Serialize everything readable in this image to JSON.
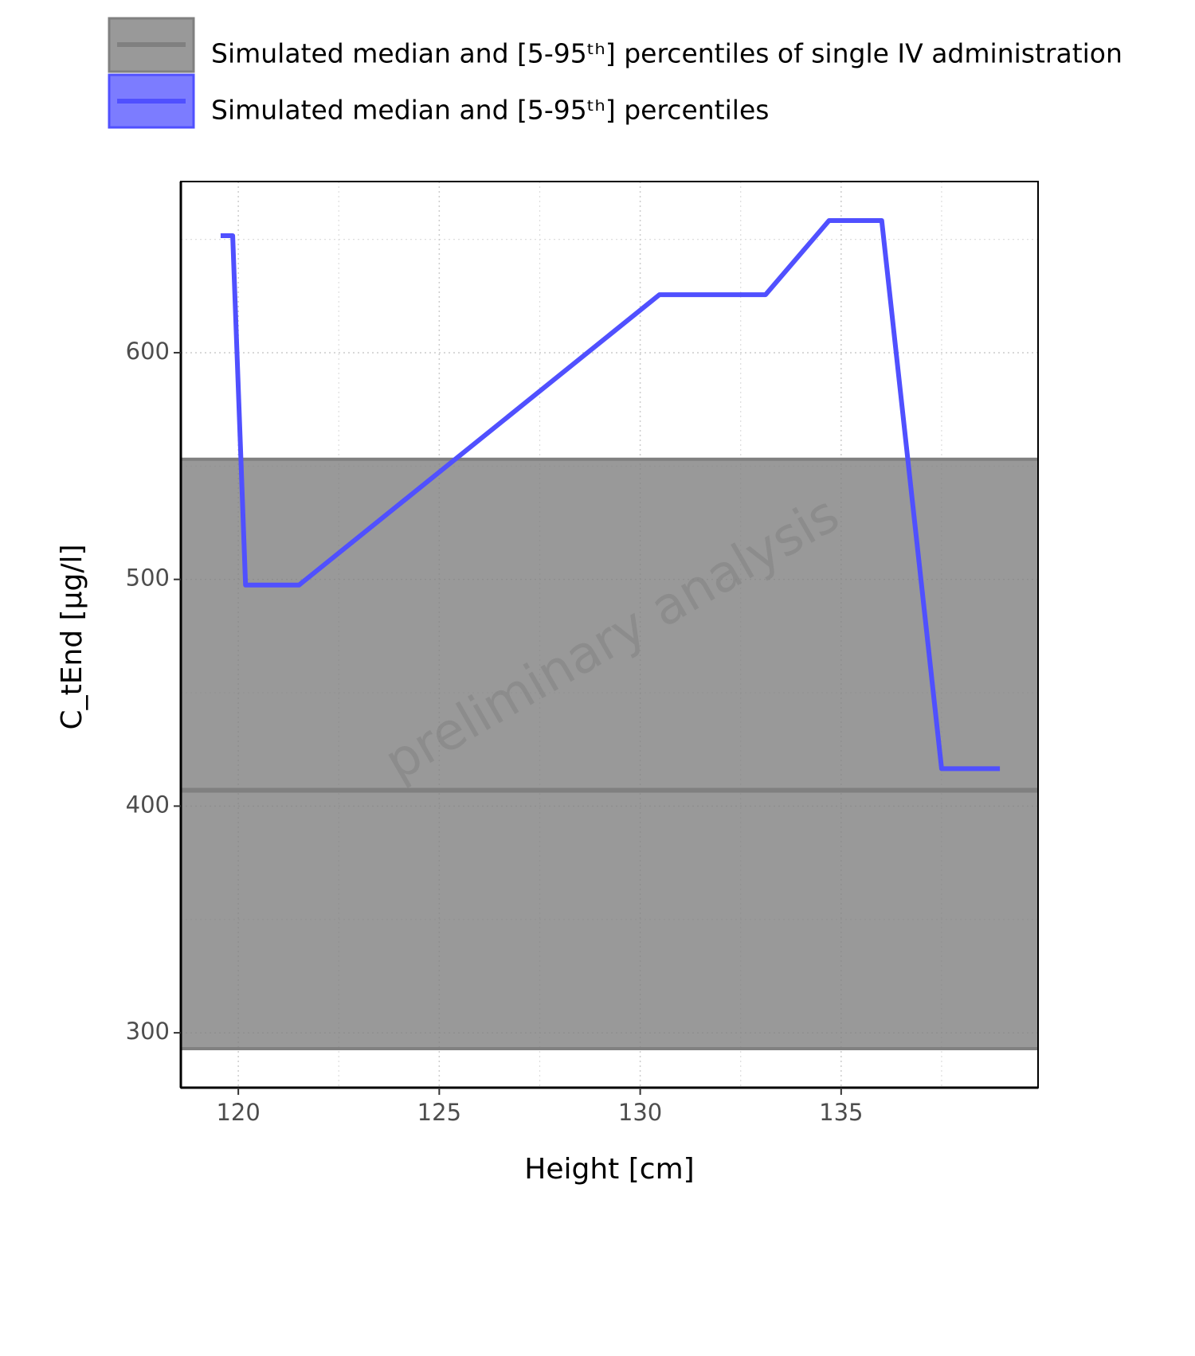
{
  "chart_data": {
    "type": "line",
    "x_label": "Height [cm]",
    "y_label": "C_tEnd [µg/l]",
    "watermark": "preliminary analysis",
    "xlim": [
      118.57,
      139.9
    ],
    "xticks": [
      120,
      125,
      130,
      135
    ],
    "xminor": [
      122.5,
      127.5,
      132.5,
      137.5
    ],
    "ylim": [
      275.8,
      675.5
    ],
    "yticks": [
      300,
      400,
      500,
      600
    ],
    "yminor": [
      350,
      450,
      550,
      650
    ],
    "grid": true,
    "reference": {
      "name": "Simulated median and [5-95ᵗʰ] percentiles of single IV administration",
      "color": "#808080",
      "median": 407,
      "lower": 293,
      "upper": 553
    },
    "series": [
      {
        "name": "Simulated median and [5-95ᵗʰ] percentiles",
        "color": "#5050ff",
        "x": [
          119.56,
          119.86,
          120.18,
          121.51,
          130.48,
          133.12,
          134.7,
          136.01,
          137.5,
          138.95
        ],
        "values": [
          651.6,
          651.6,
          497.5,
          497.5,
          625.6,
          625.6,
          658.3,
          658.3,
          416.5,
          416.5
        ]
      }
    ]
  }
}
